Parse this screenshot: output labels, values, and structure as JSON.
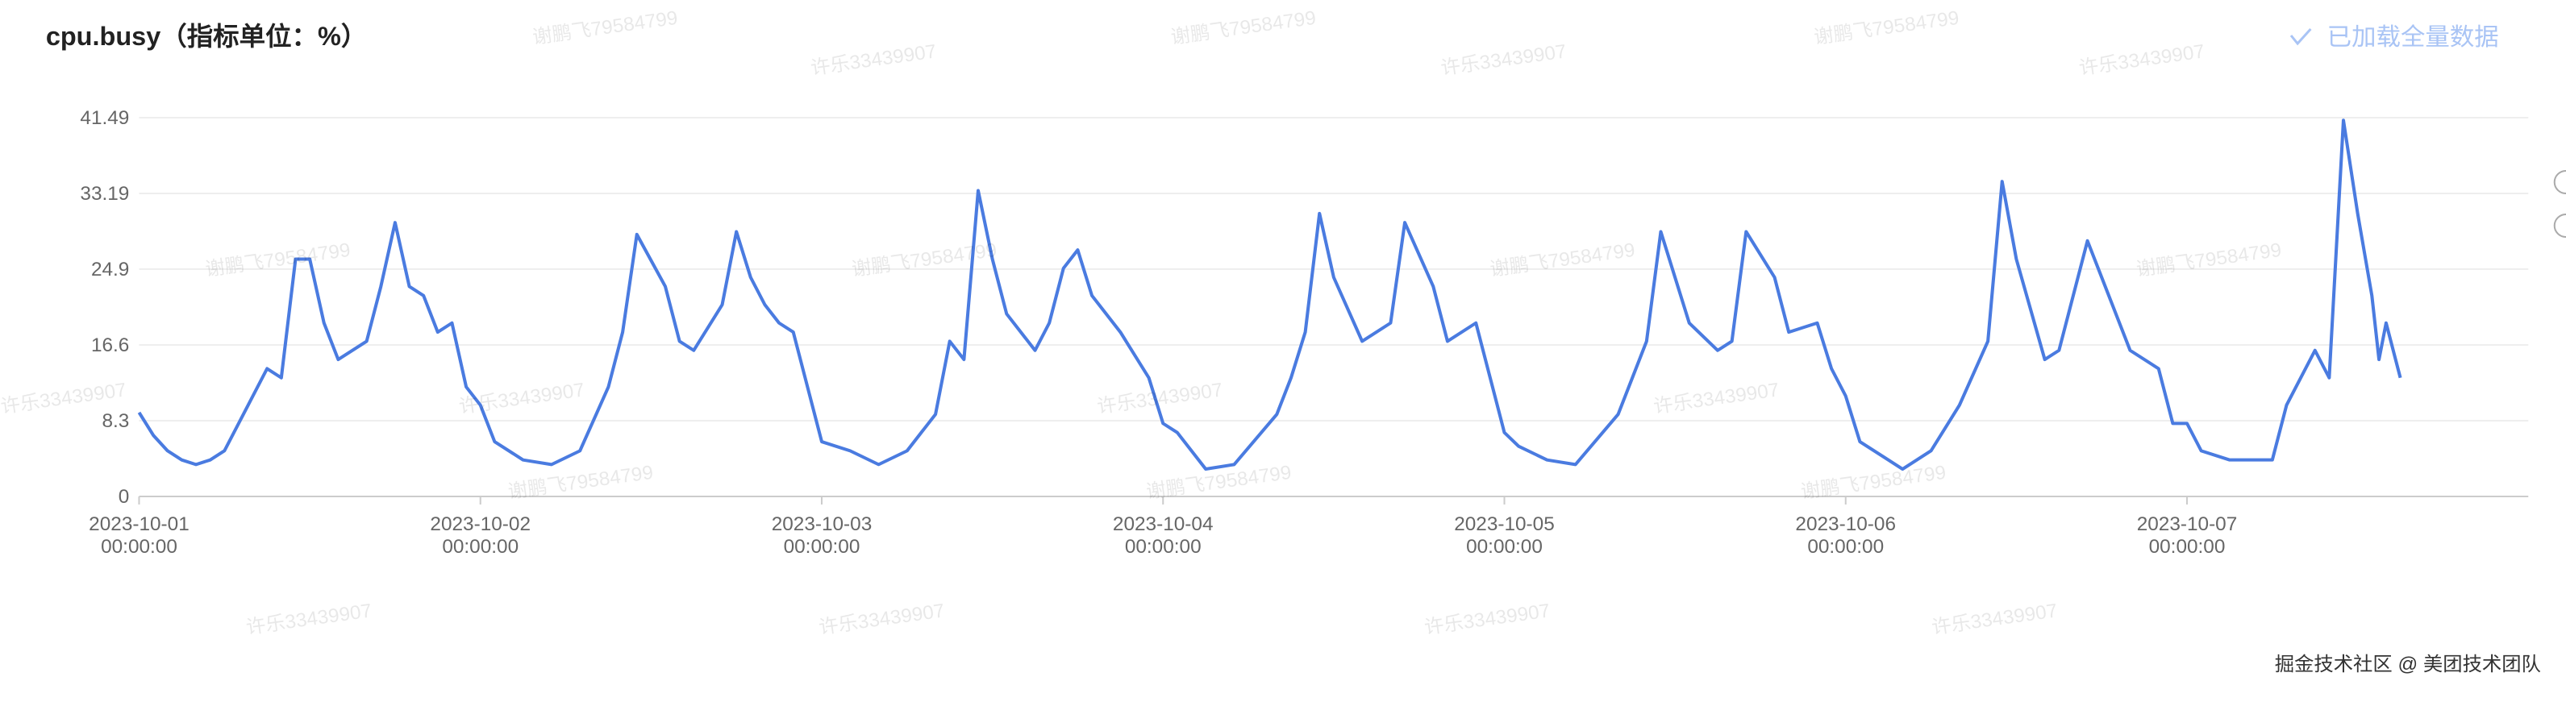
{
  "chart_data": {
    "type": "line",
    "title": "cpu.busy（指标单位：%）",
    "color": "#4a7be0",
    "grid": true,
    "ylim": [
      0,
      41.49
    ],
    "yticks": [
      0,
      8.3,
      16.6,
      24.9,
      33.19,
      41.49
    ],
    "xlim": [
      "2023-10-01 00:00:00",
      "2023-10-08 00:00:00"
    ],
    "xticks": [
      "2023-10-01 00:00:00",
      "2023-10-02 00:00:00",
      "2023-10-03 00:00:00",
      "2023-10-04 00:00:00",
      "2023-10-05 00:00:00",
      "2023-10-06 00:00:00",
      "2023-10-07 00:00:00"
    ],
    "x": [
      "2023-10-01 00:00:00",
      "2023-10-01 01:00:00",
      "2023-10-01 02:00:00",
      "2023-10-01 03:00:00",
      "2023-10-01 04:00:00",
      "2023-10-01 05:00:00",
      "2023-10-01 06:00:00",
      "2023-10-01 07:00:00",
      "2023-10-01 08:00:00",
      "2023-10-01 09:00:00",
      "2023-10-01 10:00:00",
      "2023-10-01 11:00:00",
      "2023-10-01 12:00:00",
      "2023-10-01 13:00:00",
      "2023-10-01 14:00:00",
      "2023-10-01 16:00:00",
      "2023-10-01 17:00:00",
      "2023-10-01 18:00:00",
      "2023-10-01 19:00:00",
      "2023-10-01 20:00:00",
      "2023-10-01 21:00:00",
      "2023-10-01 22:00:00",
      "2023-10-01 23:00:00",
      "2023-10-02 00:00:00",
      "2023-10-02 01:00:00",
      "2023-10-02 03:00:00",
      "2023-10-02 05:00:00",
      "2023-10-02 07:00:00",
      "2023-10-02 09:00:00",
      "2023-10-02 10:00:00",
      "2023-10-02 11:00:00",
      "2023-10-02 13:00:00",
      "2023-10-02 14:00:00",
      "2023-10-02 15:00:00",
      "2023-10-02 17:00:00",
      "2023-10-02 18:00:00",
      "2023-10-02 19:00:00",
      "2023-10-02 20:00:00",
      "2023-10-02 21:00:00",
      "2023-10-02 22:00:00",
      "2023-10-02 23:00:00",
      "2023-10-03 00:00:00",
      "2023-10-03 02:00:00",
      "2023-10-03 04:00:00",
      "2023-10-03 06:00:00",
      "2023-10-03 08:00:00",
      "2023-10-03 09:00:00",
      "2023-10-03 10:00:00",
      "2023-10-03 11:00:00",
      "2023-10-03 12:00:00",
      "2023-10-03 13:00:00",
      "2023-10-03 15:00:00",
      "2023-10-03 16:00:00",
      "2023-10-03 17:00:00",
      "2023-10-03 18:00:00",
      "2023-10-03 19:00:00",
      "2023-10-03 21:00:00",
      "2023-10-03 23:00:00",
      "2023-10-04 00:00:00",
      "2023-10-04 01:00:00",
      "2023-10-04 03:00:00",
      "2023-10-04 05:00:00",
      "2023-10-04 08:00:00",
      "2023-10-04 09:00:00",
      "2023-10-04 10:00:00",
      "2023-10-04 11:00:00",
      "2023-10-04 12:00:00",
      "2023-10-04 14:00:00",
      "2023-10-04 16:00:00",
      "2023-10-04 17:00:00",
      "2023-10-04 19:00:00",
      "2023-10-04 20:00:00",
      "2023-10-04 22:00:00",
      "2023-10-04 23:00:00",
      "2023-10-05 00:00:00",
      "2023-10-05 01:00:00",
      "2023-10-05 03:00:00",
      "2023-10-05 05:00:00",
      "2023-10-05 08:00:00",
      "2023-10-05 09:00:00",
      "2023-10-05 10:00:00",
      "2023-10-05 11:00:00",
      "2023-10-05 13:00:00",
      "2023-10-05 15:00:00",
      "2023-10-05 16:00:00",
      "2023-10-05 17:00:00",
      "2023-10-05 19:00:00",
      "2023-10-05 20:00:00",
      "2023-10-05 22:00:00",
      "2023-10-05 23:00:00",
      "2023-10-06 00:00:00",
      "2023-10-06 01:00:00",
      "2023-10-06 03:00:00",
      "2023-10-06 04:00:00",
      "2023-10-06 06:00:00",
      "2023-10-06 08:00:00",
      "2023-10-06 10:00:00",
      "2023-10-06 11:00:00",
      "2023-10-06 12:00:00",
      "2023-10-06 14:00:00",
      "2023-10-06 15:00:00",
      "2023-10-06 17:00:00",
      "2023-10-06 18:00:00",
      "2023-10-06 20:00:00",
      "2023-10-06 22:00:00",
      "2023-10-06 23:00:00",
      "2023-10-07 00:00:00",
      "2023-10-07 01:00:00",
      "2023-10-07 03:00:00",
      "2023-10-07 06:00:00",
      "2023-10-07 07:00:00",
      "2023-10-07 09:00:00",
      "2023-10-07 10:00:00",
      "2023-10-07 11:00:00",
      "2023-10-07 12:00:00",
      "2023-10-07 13:00:00",
      "2023-10-07 13:30:00",
      "2023-10-07 14:00:00",
      "2023-10-07 15:00:00"
    ],
    "values": [
      9.2,
      6.7,
      5,
      4,
      3.5,
      4,
      5,
      8,
      11,
      14,
      13,
      26,
      26,
      19,
      15,
      17,
      23,
      30,
      23,
      22,
      18,
      19,
      12,
      10,
      6,
      4,
      3.5,
      5,
      12,
      18,
      28.7,
      23,
      17,
      16,
      21,
      29,
      24,
      21,
      19,
      18,
      12,
      6,
      5,
      3.5,
      5,
      9,
      17,
      15,
      33.5,
      26,
      20,
      16,
      19,
      25,
      27,
      22,
      18,
      13,
      8,
      7,
      3,
      3.5,
      9,
      13,
      18,
      31,
      24,
      17,
      19,
      30,
      23,
      17,
      19,
      13,
      7,
      5.5,
      4,
      3.5,
      9,
      13,
      17,
      29,
      19,
      16,
      17,
      29,
      24,
      18,
      19,
      14,
      11,
      6,
      4,
      3,
      5,
      10,
      17,
      34.5,
      26,
      15,
      16,
      28,
      24,
      16,
      14,
      8,
      8,
      5,
      4,
      4,
      10,
      16,
      13,
      41.2,
      31,
      22,
      15,
      19,
      13
    ]
  },
  "status_text": "已加载全量数据",
  "watermarks": [
    "谢鹏飞79584799",
    "许乐33439907"
  ],
  "footer": "掘金技术社区 @ 美团技术团队"
}
